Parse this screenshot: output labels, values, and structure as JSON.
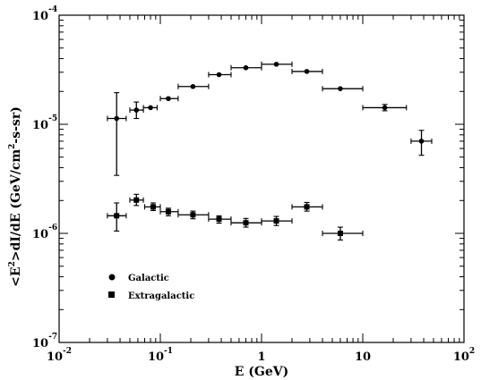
{
  "chart_data": {
    "type": "scatter",
    "title": "",
    "xlabel": "E (GeV)",
    "ylabel": "<E²>dI/dE (GeV/cm²-s-sr)",
    "ylabel_parts": {
      "prefix": "<E",
      "exp1": "2",
      "middle": ">dI/dE (GeV/cm",
      "exp2": "2",
      "suffix": "-s-sr)"
    },
    "xscale": "log",
    "yscale": "log",
    "xlim": [
      0.01,
      100
    ],
    "ylim": [
      1e-07,
      0.0001
    ],
    "x_ticks": [
      {
        "base": "10",
        "exp": "-2"
      },
      {
        "base": "10",
        "exp": "-1"
      },
      {
        "base": "1",
        "exp": ""
      },
      {
        "base": "10",
        "exp": ""
      },
      {
        "base": "10",
        "exp": "2"
      }
    ],
    "y_ticks": [
      {
        "base": "10",
        "exp": "-7"
      },
      {
        "base": "10",
        "exp": "-6"
      },
      {
        "base": "10",
        "exp": "-5"
      },
      {
        "base": "10",
        "exp": "-4"
      }
    ],
    "legend_position": "lower-left",
    "grid": false,
    "series": [
      {
        "name": "Galactic",
        "marker": "circle",
        "points": [
          {
            "x": 0.037,
            "xlo": 0.03,
            "xhi": 0.046,
            "y": 1.13e-05,
            "ylo": 3.4e-06,
            "yhi": 1.95e-05
          },
          {
            "x": 0.058,
            "xlo": 0.05,
            "xhi": 0.068,
            "y": 1.35e-05,
            "ylo": 1.13e-05,
            "yhi": 1.6e-05
          },
          {
            "x": 0.08,
            "xlo": 0.068,
            "xhi": 0.093,
            "y": 1.42e-05
          },
          {
            "x": 0.12,
            "xlo": 0.1,
            "xhi": 0.15,
            "y": 1.72e-05
          },
          {
            "x": 0.21,
            "xlo": 0.15,
            "xhi": 0.3,
            "y": 2.22e-05
          },
          {
            "x": 0.38,
            "xlo": 0.3,
            "xhi": 0.5,
            "y": 2.85e-05
          },
          {
            "x": 0.7,
            "xlo": 0.5,
            "xhi": 1.0,
            "y": 3.3e-05
          },
          {
            "x": 1.4,
            "xlo": 1.0,
            "xhi": 2.0,
            "y": 3.55e-05
          },
          {
            "x": 2.8,
            "xlo": 2.0,
            "xhi": 4.0,
            "y": 3.05e-05
          },
          {
            "x": 6.0,
            "xlo": 4.0,
            "xhi": 10.0,
            "y": 2.12e-05
          },
          {
            "x": 16.5,
            "xlo": 10.0,
            "xhi": 27.0,
            "y": 1.42e-05,
            "ylo": 1.33e-05,
            "yhi": 1.52e-05
          },
          {
            "x": 38.0,
            "xlo": 30.0,
            "xhi": 48.0,
            "y": 7e-06,
            "ylo": 5.2e-06,
            "yhi": 8.8e-06
          }
        ]
      },
      {
        "name": "Extragalactic",
        "marker": "square",
        "points": [
          {
            "x": 0.037,
            "xlo": 0.03,
            "xhi": 0.046,
            "y": 1.45e-06,
            "ylo": 1.05e-06,
            "yhi": 1.9e-06
          },
          {
            "x": 0.058,
            "xlo": 0.05,
            "xhi": 0.068,
            "y": 2.02e-06,
            "ylo": 1.8e-06,
            "yhi": 2.28e-06
          },
          {
            "x": 0.085,
            "xlo": 0.07,
            "xhi": 0.1,
            "y": 1.75e-06,
            "ylo": 1.62e-06,
            "yhi": 1.9e-06
          },
          {
            "x": 0.12,
            "xlo": 0.1,
            "xhi": 0.15,
            "y": 1.58e-06,
            "ylo": 1.45e-06,
            "yhi": 1.7e-06
          },
          {
            "x": 0.21,
            "xlo": 0.15,
            "xhi": 0.3,
            "y": 1.48e-06,
            "ylo": 1.36e-06,
            "yhi": 1.6e-06
          },
          {
            "x": 0.38,
            "xlo": 0.3,
            "xhi": 0.5,
            "y": 1.35e-06,
            "ylo": 1.24e-06,
            "yhi": 1.45e-06
          },
          {
            "x": 0.7,
            "xlo": 0.5,
            "xhi": 1.0,
            "y": 1.25e-06,
            "ylo": 1.14e-06,
            "yhi": 1.37e-06
          },
          {
            "x": 1.4,
            "xlo": 1.0,
            "xhi": 2.0,
            "y": 1.3e-06,
            "ylo": 1.18e-06,
            "yhi": 1.43e-06
          },
          {
            "x": 2.8,
            "xlo": 2.0,
            "xhi": 4.0,
            "y": 1.75e-06,
            "ylo": 1.6e-06,
            "yhi": 1.92e-06
          },
          {
            "x": 6.0,
            "xlo": 4.0,
            "xhi": 10.0,
            "y": 1e-06,
            "ylo": 8.7e-07,
            "yhi": 1.14e-06
          }
        ]
      }
    ]
  }
}
